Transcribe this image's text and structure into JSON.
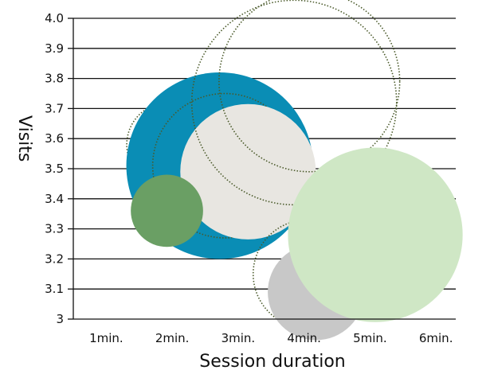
{
  "chart_data": {
    "type": "scatter",
    "subtype": "bubble",
    "title": "",
    "xlabel": "Session duration",
    "ylabel": "Visits",
    "xlim": [
      0.5,
      6.3
    ],
    "ylim": [
      3.0,
      4.0
    ],
    "x_tick_labels": [
      "1min.",
      "2min.",
      "3min.",
      "4min.",
      "5min.",
      "6min."
    ],
    "x_ticks": [
      1,
      2,
      3,
      4,
      5,
      6
    ],
    "y_tick_labels": [
      "3",
      "3.1",
      "3.2",
      "3.3",
      "3.4",
      "3.5",
      "3.6",
      "3.7",
      "3.8",
      "3.9",
      "4.0"
    ],
    "y_ticks": [
      3.0,
      3.1,
      3.2,
      3.3,
      3.4,
      3.5,
      3.6,
      3.7,
      3.8,
      3.9,
      4.0
    ],
    "grid": "horizontal",
    "legend": "none",
    "points": [
      {
        "x": 1.95,
        "y": 3.58,
        "size": 0.28,
        "style": "outline",
        "color": "#4a5a2a"
      },
      {
        "x": 2.72,
        "y": 3.51,
        "size": 0.62,
        "style": "filled",
        "color": "#0a8db5"
      },
      {
        "x": 2.8,
        "y": 3.51,
        "size": 0.48,
        "style": "outline",
        "color": "#4a5a2a"
      },
      {
        "x": 3.15,
        "y": 3.49,
        "size": 0.45,
        "style": "filled",
        "color": "#e8e6e1"
      },
      {
        "x": 1.92,
        "y": 3.36,
        "size": 0.24,
        "style": "filled",
        "color": "#6a9f64"
      },
      {
        "x": 3.85,
        "y": 3.72,
        "size": 0.68,
        "style": "outline",
        "color": "#4a5a2a"
      },
      {
        "x": 4.08,
        "y": 3.79,
        "size": 0.6,
        "style": "outline",
        "color": "#4a5a2a"
      },
      {
        "x": 4.05,
        "y": 3.15,
        "size": 0.36,
        "style": "outline",
        "color": "#4a5a2a"
      },
      {
        "x": 4.18,
        "y": 3.09,
        "size": 0.32,
        "style": "filled",
        "color": "#c8c8c8"
      },
      {
        "x": 5.08,
        "y": 3.28,
        "size": 0.58,
        "style": "filled",
        "color": "#cfe7c5"
      }
    ]
  }
}
